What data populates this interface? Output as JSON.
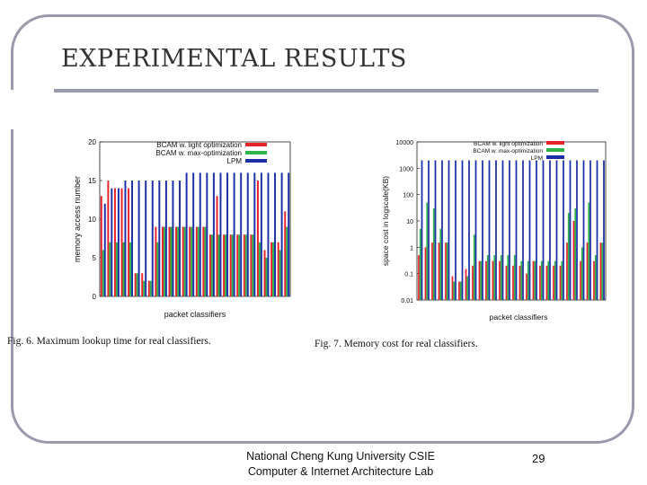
{
  "slide": {
    "title": "EXPERIMENTAL RESULTS",
    "footer_line1": "National Cheng Kung University CSIE",
    "footer_line2": "Computer & Internet Architecture Lab",
    "page_number": "29",
    "fig6_caption": "Fig. 6.   Maximum lookup time for real classifiers.",
    "fig7_caption": "Fig. 7.    Memory cost for real classifiers.",
    "frame_color": "#9a9aad"
  },
  "chart_data": [
    {
      "type": "bar",
      "xlabel": "packet classifiers",
      "ylabel": "memory access number",
      "ylim": [
        0,
        20
      ],
      "yticks": [
        "0",
        "5",
        "10",
        "15",
        "20"
      ],
      "grid": false,
      "legend_position": "top-right",
      "series": [
        {
          "name": "BCAM w. light optimization",
          "color": "#e8242a",
          "values": [
            13,
            15,
            14,
            14,
            14,
            3,
            3,
            2,
            9,
            9,
            9,
            9,
            9,
            9,
            9,
            9,
            8,
            13,
            8,
            8,
            8,
            8,
            8,
            15,
            6,
            7,
            7,
            11
          ]
        },
        {
          "name": "BCAM w. max-optimization",
          "color": "#2db34a",
          "values": [
            6,
            7,
            7,
            7,
            7,
            3,
            2,
            2,
            7,
            9,
            9,
            9,
            9,
            9,
            9,
            9,
            8,
            8,
            8,
            8,
            8,
            8,
            8,
            7,
            5,
            7,
            6,
            9
          ]
        },
        {
          "name": "LPM",
          "color": "#1c2fa6",
          "values": [
            12,
            14,
            14,
            15,
            15,
            15,
            15,
            15,
            15,
            15,
            15,
            15,
            16,
            16,
            16,
            16,
            16,
            16,
            16,
            16,
            16,
            16,
            16,
            16,
            16,
            16,
            16,
            16
          ]
        }
      ]
    },
    {
      "type": "bar",
      "xlabel": "packet classifiers",
      "ylabel": "space cost in logscale(KB)",
      "yscale": "log",
      "ylim": [
        0.01,
        10000
      ],
      "yticks": [
        "0.01",
        "0.1",
        "1",
        "10",
        "100",
        "1000",
        "10000"
      ],
      "grid": false,
      "legend_position": "top-right",
      "series": [
        {
          "name": "BCAM w. light optimization",
          "color": "#e8242a",
          "values": [
            0.5,
            1,
            1.5,
            1.5,
            1.5,
            0.08,
            0.05,
            0.15,
            0.2,
            0.3,
            0.3,
            0.3,
            0.3,
            0.2,
            0.2,
            0.2,
            0.1,
            0.3,
            0.2,
            0.2,
            0.2,
            0.2,
            1.5,
            10,
            0.3,
            1.5,
            0.3,
            1.5
          ]
        },
        {
          "name": "BCAM w. max-optimization",
          "color": "#2db34a",
          "values": [
            5,
            50,
            30,
            5,
            1.5,
            0.05,
            0.05,
            0.08,
            3,
            0.3,
            0.5,
            0.5,
            0.5,
            0.5,
            0.5,
            0.3,
            0.3,
            0.3,
            0.3,
            0.3,
            0.3,
            0.3,
            20,
            30,
            1,
            50,
            0.5,
            1.5
          ]
        },
        {
          "name": "LPM",
          "color": "#1c2fa6",
          "values": [
            2000,
            2000,
            2000,
            2000,
            2000,
            2000,
            2000,
            2000,
            2000,
            2000,
            2000,
            2000,
            2000,
            2000,
            2000,
            2000,
            2000,
            2000,
            2000,
            2000,
            2000,
            2000,
            2000,
            2000,
            2000,
            2000,
            2000,
            2000
          ]
        }
      ]
    }
  ]
}
